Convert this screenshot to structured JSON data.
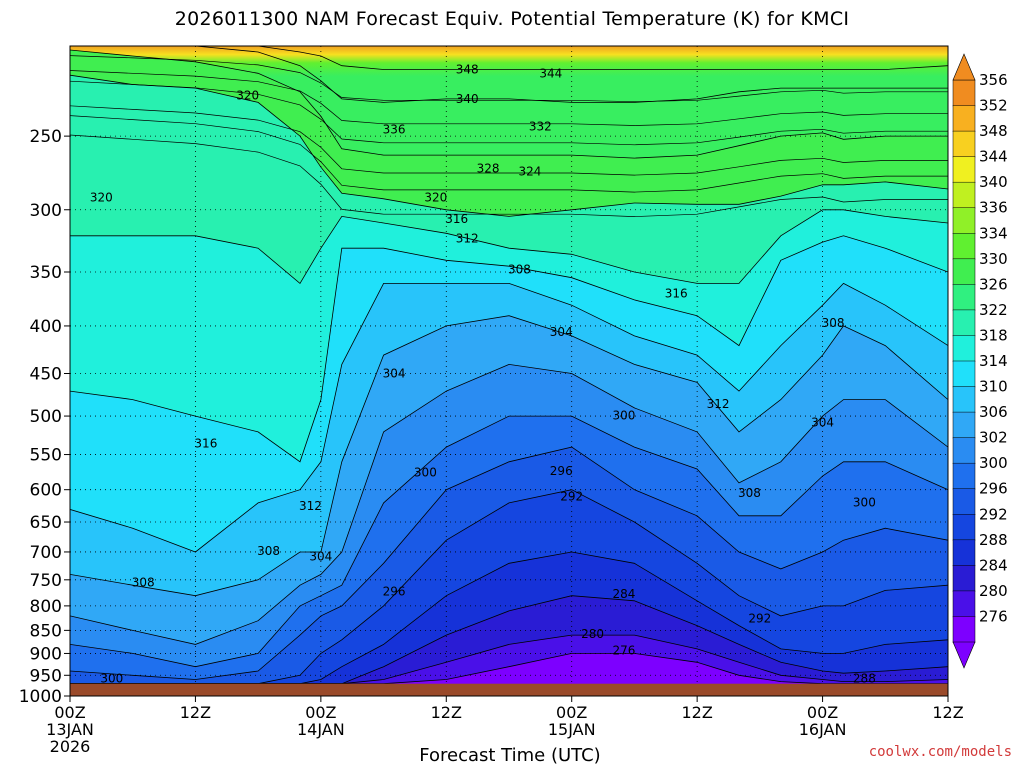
{
  "chart_data": {
    "type": "heatmap",
    "title": "2026011300 NAM Forecast Equiv. Potential Temperature (K) for KMCI",
    "xlabel": "Forecast Time (UTC)",
    "ylabel": "",
    "credit": "coolwx.com/models",
    "x_ticks": [
      {
        "hour": 0,
        "label": "00Z",
        "date": "13JAN",
        "year": "2026"
      },
      {
        "hour": 12,
        "label": "12Z",
        "date": "",
        "year": ""
      },
      {
        "hour": 24,
        "label": "00Z",
        "date": "14JAN",
        "year": ""
      },
      {
        "hour": 36,
        "label": "12Z",
        "date": "",
        "year": ""
      },
      {
        "hour": 48,
        "label": "00Z",
        "date": "15JAN",
        "year": ""
      },
      {
        "hour": 60,
        "label": "12Z",
        "date": "",
        "year": ""
      },
      {
        "hour": 72,
        "label": "00Z",
        "date": "16JAN",
        "year": ""
      },
      {
        "hour": 84,
        "label": "12Z",
        "date": "",
        "year": ""
      }
    ],
    "xlim": [
      0,
      84
    ],
    "y_ticks": [
      250,
      300,
      350,
      400,
      450,
      500,
      550,
      600,
      650,
      700,
      750,
      800,
      850,
      900,
      950,
      1000
    ],
    "ylim": [
      1000,
      200
    ],
    "yscale": "log-pressure",
    "ground_pressure": 970,
    "grid": true,
    "colorbar": {
      "levels": [
        276,
        280,
        284,
        288,
        292,
        296,
        300,
        302,
        306,
        310,
        314,
        318,
        322,
        326,
        330,
        334,
        336,
        340,
        344,
        348,
        352,
        356
      ],
      "colors": [
        "#7d00ff",
        "#4a10e8",
        "#2a1cd4",
        "#1632d8",
        "#1546e0",
        "#1a5ae6",
        "#1f70ee",
        "#2a8cf2",
        "#30a8f6",
        "#28c4fa",
        "#20e0fa",
        "#20f0dc",
        "#28f0b0",
        "#30f080",
        "#40ee50",
        "#60f030",
        "#90f028",
        "#c0f020",
        "#f0f020",
        "#f8d020",
        "#f8b020",
        "#f08c20"
      ],
      "placement": "right"
    },
    "contour_labels": [
      {
        "text": "348",
        "x": 38,
        "p": 212
      },
      {
        "text": "344",
        "x": 46,
        "p": 214
      },
      {
        "text": "340",
        "x": 38,
        "p": 228
      },
      {
        "text": "336",
        "x": 31,
        "p": 246
      },
      {
        "text": "332",
        "x": 45,
        "p": 244
      },
      {
        "text": "328",
        "x": 40,
        "p": 271
      },
      {
        "text": "324",
        "x": 44,
        "p": 273
      },
      {
        "text": "320",
        "x": 17,
        "p": 226
      },
      {
        "text": "320",
        "x": 3,
        "p": 291
      },
      {
        "text": "320",
        "x": 35,
        "p": 291
      },
      {
        "text": "316",
        "x": 37,
        "p": 307
      },
      {
        "text": "312",
        "x": 38,
        "p": 322
      },
      {
        "text": "308",
        "x": 43,
        "p": 348
      },
      {
        "text": "304",
        "x": 47,
        "p": 406
      },
      {
        "text": "304",
        "x": 31,
        "p": 450
      },
      {
        "text": "316",
        "x": 58,
        "p": 369
      },
      {
        "text": "308",
        "x": 73,
        "p": 397
      },
      {
        "text": "312",
        "x": 62,
        "p": 485
      },
      {
        "text": "304",
        "x": 72,
        "p": 508
      },
      {
        "text": "300",
        "x": 53,
        "p": 499
      },
      {
        "text": "296",
        "x": 47,
        "p": 573
      },
      {
        "text": "292",
        "x": 48,
        "p": 610
      },
      {
        "text": "300",
        "x": 34,
        "p": 575
      },
      {
        "text": "316",
        "x": 13,
        "p": 535
      },
      {
        "text": "312",
        "x": 23,
        "p": 625
      },
      {
        "text": "308",
        "x": 19,
        "p": 698
      },
      {
        "text": "308",
        "x": 7,
        "p": 755
      },
      {
        "text": "304",
        "x": 24,
        "p": 708
      },
      {
        "text": "296",
        "x": 31,
        "p": 772
      },
      {
        "text": "284",
        "x": 53,
        "p": 777
      },
      {
        "text": "292",
        "x": 66,
        "p": 825
      },
      {
        "text": "280",
        "x": 50,
        "p": 858
      },
      {
        "text": "276",
        "x": 53,
        "p": 893
      },
      {
        "text": "308",
        "x": 65,
        "p": 605
      },
      {
        "text": "300",
        "x": 76,
        "p": 619
      },
      {
        "text": "300",
        "x": 4,
        "p": 958
      },
      {
        "text": "288",
        "x": 76,
        "p": 958
      }
    ]
  },
  "colorbar": {
    "labels": [
      "356",
      "352",
      "348",
      "344",
      "340",
      "336",
      "334",
      "330",
      "326",
      "322",
      "318",
      "314",
      "310",
      "306",
      "302",
      "300",
      "296",
      "292",
      "288",
      "284",
      "280",
      "276"
    ]
  }
}
